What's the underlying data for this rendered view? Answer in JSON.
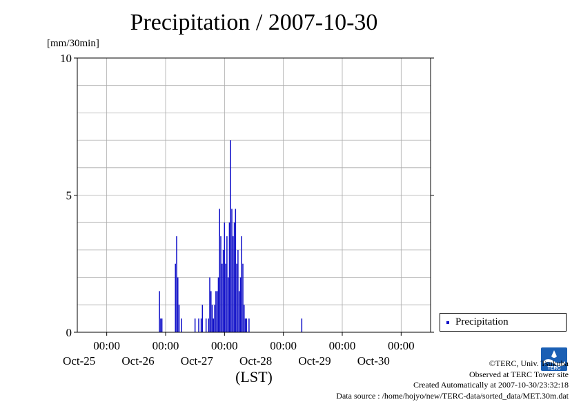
{
  "chart_data": {
    "type": "bar",
    "title": "Precipitation / 2007-10-30",
    "ylabel": "[mm/30min]",
    "xlabel": "(LST)",
    "ylim": [
      0,
      10
    ],
    "yticks": [
      "0",
      "5",
      "10"
    ],
    "xlim": [
      "2007-10-24 12:00",
      "2007-10-30 12:00"
    ],
    "xticks": [
      {
        "time": "00:00",
        "date": "Oct-25"
      },
      {
        "time": "00:00",
        "date": "Oct-26"
      },
      {
        "time": "00:00",
        "date": "Oct-27"
      },
      {
        "time": "00:00",
        "date": "Oct-28"
      },
      {
        "time": "00:00",
        "date": "Oct-29"
      },
      {
        "time": "00:00",
        "date": "Oct-30"
      }
    ],
    "grid": true,
    "legend_position": "right",
    "bar_color": "#1010c8",
    "series": [
      {
        "name": "Precipitation",
        "x": [
          "10/25 21:30",
          "10/25 22:00",
          "10/25 22:30",
          "10/26 04:00",
          "10/26 04:30",
          "10/26 05:00",
          "10/26 05:30",
          "10/26 06:30",
          "10/26 12:00",
          "10/26 13:30",
          "10/26 14:30",
          "10/26 15:00",
          "10/26 16:30",
          "10/26 17:30",
          "10/26 18:00",
          "10/26 18:30",
          "10/26 19:00",
          "10/26 19:30",
          "10/26 20:00",
          "10/26 20:30",
          "10/26 21:00",
          "10/26 21:30",
          "10/26 22:00",
          "10/26 22:30",
          "10/26 23:00",
          "10/26 23:30",
          "10/27 00:00",
          "10/27 00:30",
          "10/27 01:00",
          "10/27 01:30",
          "10/27 02:00",
          "10/27 02:30",
          "10/27 03:00",
          "10/27 03:30",
          "10/27 04:00",
          "10/27 04:30",
          "10/27 05:00",
          "10/27 05:30",
          "10/27 06:00",
          "10/27 06:30",
          "10/27 07:00",
          "10/27 07:30",
          "10/27 08:00",
          "10/27 08:30",
          "10/27 09:00",
          "10/27 10:00",
          "10/28 07:30"
        ],
        "values": [
          1.5,
          0.5,
          0.5,
          2.5,
          3.5,
          2.0,
          1.0,
          0.5,
          0.5,
          0.5,
          0.5,
          1.0,
          0.5,
          0.5,
          2.0,
          1.5,
          1.0,
          0.5,
          1.0,
          1.5,
          1.5,
          2.0,
          4.5,
          3.5,
          2.5,
          3.0,
          4.0,
          2.5,
          3.5,
          2.0,
          4.0,
          7.0,
          4.5,
          3.5,
          4.0,
          4.5,
          2.5,
          3.0,
          1.5,
          2.0,
          3.5,
          2.5,
          1.0,
          0.5,
          0.5,
          0.5,
          0.5
        ]
      }
    ]
  },
  "legend": {
    "label": "Precipitation"
  },
  "credits": {
    "copyright": "©TERC, Univ. Tsukuba",
    "observed": "Observed at TERC Tower site",
    "created": "Created Automatically at 2007-10-30/23:32:18",
    "source": "Data source : /home/hojyo/new/TERC-data/sorted_data/MET.30m.dat"
  },
  "logo": {
    "text": "TERC"
  }
}
